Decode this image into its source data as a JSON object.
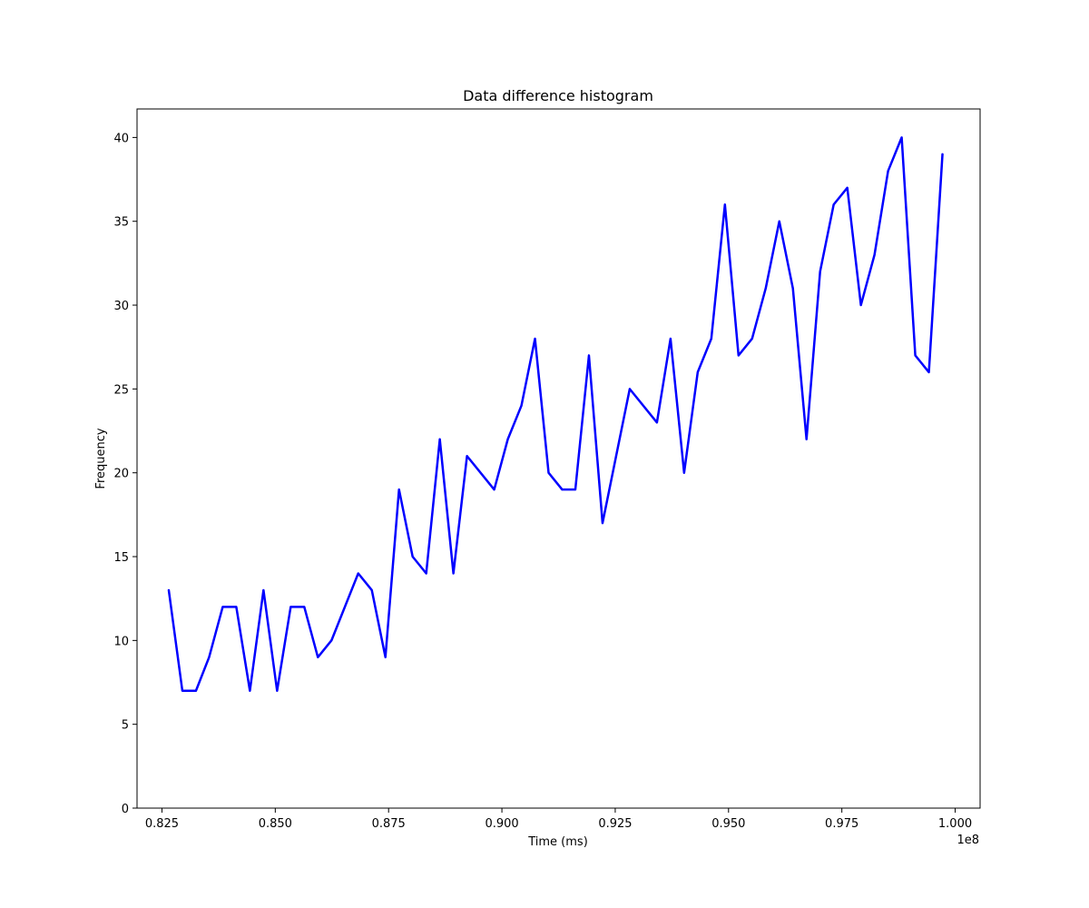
{
  "chart_data": {
    "type": "line",
    "title": "Data difference histogram",
    "xlabel": "Time (ms)",
    "ylabel": "Frequency",
    "x_offset_label": "1e8",
    "xlim": [
      0.8195,
      1.0055
    ],
    "ylim": [
      0,
      41.7
    ],
    "x_ticks": [
      0.825,
      0.85,
      0.875,
      0.9,
      0.925,
      0.95,
      0.975,
      1.0
    ],
    "x_tick_labels": [
      "0.825",
      "0.850",
      "0.875",
      "0.900",
      "0.925",
      "0.950",
      "0.975",
      "1.000"
    ],
    "y_ticks": [
      0,
      5,
      10,
      15,
      20,
      25,
      30,
      35,
      40
    ],
    "y_tick_labels": [
      "0",
      "5",
      "10",
      "15",
      "20",
      "25",
      "30",
      "35",
      "40"
    ],
    "grid": false,
    "series": [
      {
        "color": "#0000ff",
        "x": [
          0.8265,
          0.8295,
          0.8325,
          0.8354,
          0.8384,
          0.8414,
          0.8444,
          0.8474,
          0.8504,
          0.8534,
          0.8564,
          0.8594,
          0.8624,
          0.8683,
          0.8713,
          0.8743,
          0.8773,
          0.8803,
          0.8833,
          0.8863,
          0.8893,
          0.8923,
          0.8983,
          0.9013,
          0.9043,
          0.9073,
          0.9103,
          0.9133,
          0.9162,
          0.9192,
          0.9222,
          0.9282,
          0.9342,
          0.9372,
          0.9402,
          0.9432,
          0.9462,
          0.9492,
          0.9522,
          0.9552,
          0.9582,
          0.9612,
          0.9642,
          0.9672,
          0.9702,
          0.9732,
          0.9762,
          0.9792,
          0.9822,
          0.9852,
          0.9882,
          0.9912,
          0.9942,
          0.9972
        ],
        "y": [
          13,
          7,
          7,
          9,
          12,
          12,
          7,
          13,
          7,
          12,
          12,
          9,
          10,
          14,
          13,
          9,
          19,
          15,
          14,
          22,
          14,
          21,
          19,
          22,
          24,
          28,
          20,
          19,
          19,
          27,
          17,
          25,
          23,
          28,
          20,
          26,
          28,
          36,
          27,
          28,
          31,
          35,
          31,
          22,
          32,
          36,
          37,
          30,
          33,
          38,
          40,
          27,
          26,
          39
        ]
      }
    ]
  }
}
